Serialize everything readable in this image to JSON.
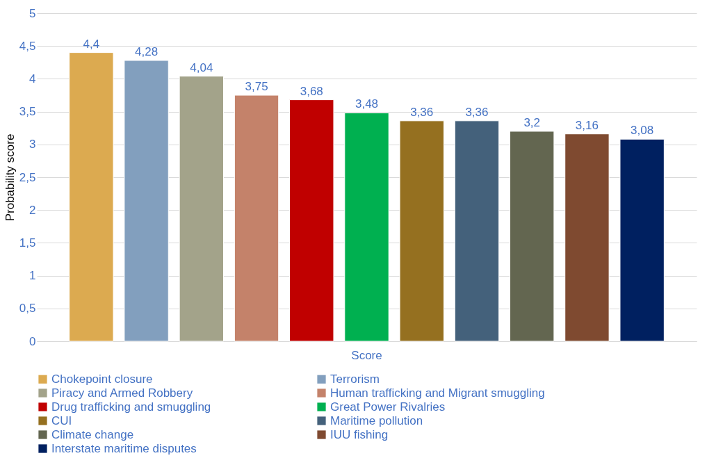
{
  "chart_data": {
    "type": "bar",
    "ylabel": "Probability score",
    "categories": [
      "Score"
    ],
    "ylim": [
      0,
      5
    ],
    "yticks": [
      0,
      {
        "value": 0.5,
        "label": "0,5"
      },
      1,
      {
        "value": 1.5,
        "label": "1,5"
      },
      2,
      {
        "value": 2.5,
        "label": "2,5"
      },
      3,
      {
        "value": 3.5,
        "label": "3,5"
      },
      4,
      {
        "value": 4.5,
        "label": "4,5"
      },
      5
    ],
    "grid": "y",
    "legend": "bottom",
    "series": [
      {
        "name": "Chokepoint closure",
        "color": "#dcaa50",
        "values": [
          4.4
        ],
        "value_labels": [
          "4,4"
        ]
      },
      {
        "name": "Terrorism",
        "color": "#829fbe",
        "values": [
          4.28
        ],
        "value_labels": [
          "4,28"
        ]
      },
      {
        "name": "Piracy and Armed Robbery",
        "color": "#a3a38a",
        "values": [
          4.04
        ],
        "value_labels": [
          "4,04"
        ]
      },
      {
        "name": "Human trafficking and Migrant smuggling",
        "color": "#c4826a",
        "values": [
          3.75
        ],
        "value_labels": [
          "3,75"
        ]
      },
      {
        "name": "Drug trafficking and smuggling",
        "color": "#c00000",
        "values": [
          3.68
        ],
        "value_labels": [
          "3,68"
        ]
      },
      {
        "name": "Great Power Rivalries",
        "color": "#00b050",
        "values": [
          3.48
        ],
        "value_labels": [
          "3,48"
        ]
      },
      {
        "name": "CUI",
        "color": "#957020",
        "values": [
          3.36
        ],
        "value_labels": [
          "3,36"
        ]
      },
      {
        "name": "Maritime pollution",
        "color": "#44617b",
        "values": [
          3.36
        ],
        "value_labels": [
          "3,36"
        ]
      },
      {
        "name": "Climate change",
        "color": "#636650",
        "values": [
          3.2
        ],
        "value_labels": [
          "3,2"
        ]
      },
      {
        "name": "IUU fishing",
        "color": "#7f4a30",
        "values": [
          3.16
        ],
        "value_labels": [
          "3,16"
        ]
      },
      {
        "name": "Interstate maritime disputes",
        "color": "#002060",
        "values": [
          3.08
        ],
        "value_labels": [
          "3,08"
        ]
      }
    ]
  }
}
